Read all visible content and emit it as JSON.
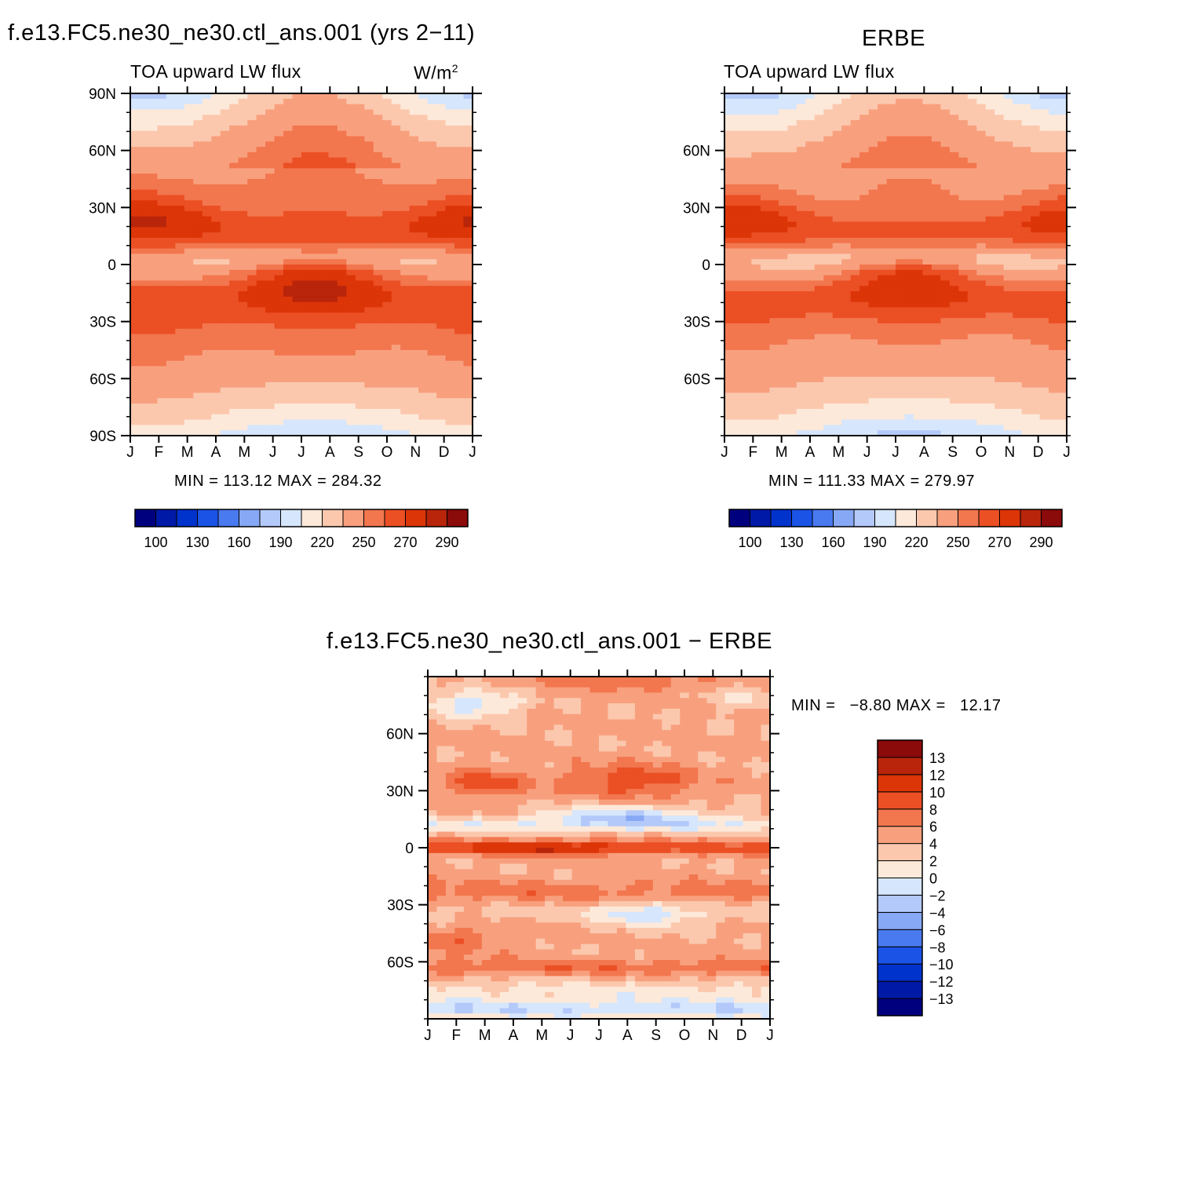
{
  "panel_model": {
    "title": "f.e13.FC5.ne30_ne30.ctl_ans.001 (yrs 2−11)",
    "subtitle_left": "TOA upward LW flux",
    "units_base": "W/m",
    "units_exp": "2",
    "stats": "MIN = 113.12 MAX = 284.32"
  },
  "panel_obs": {
    "title": "ERBE",
    "subtitle_left": "TOA upward LW flux",
    "stats": "MIN = 111.33 MAX = 279.97"
  },
  "panel_diff": {
    "title": "f.e13.FC5.ne30_ne30.ctl_ans.001 − ERBE",
    "stats": "MIN =   −8.80 MAX =   12.17"
  },
  "colors": {
    "flux": [
      "#00007f",
      "#0019a6",
      "#0032cc",
      "#1a53e6",
      "#4a7af0",
      "#87a8f5",
      "#b3c9fa",
      "#d6e6fc",
      "#fde9d9",
      "#fbc8ae",
      "#f8a07e",
      "#f2764e",
      "#eb4f24",
      "#dc3508",
      "#b8250a",
      "#8b0a0a"
    ],
    "diff": [
      "#00007f",
      "#0019a6",
      "#0032cc",
      "#1a53e6",
      "#4a7af0",
      "#87a8f5",
      "#b3c9fa",
      "#d6e6fc",
      "#fde9d9",
      "#fbc8ae",
      "#f8a07e",
      "#f2764e",
      "#eb4f24",
      "#dc3508",
      "#b8250a",
      "#8b0a0a"
    ]
  },
  "chart_data": [
    {
      "type": "heatmap",
      "name": "model",
      "x_tick_labels": [
        "J",
        "F",
        "M",
        "A",
        "M",
        "J",
        "J",
        "A",
        "S",
        "O",
        "N",
        "D",
        "J"
      ],
      "y_tick_labels": [
        "90N",
        "60N",
        "30N",
        "0",
        "30S",
        "60S",
        "90S"
      ],
      "y_tick_values": [
        90,
        60,
        30,
        0,
        -30,
        -60,
        -90
      ],
      "ylim": [
        -90,
        90
      ],
      "colorbar_labels": [
        "100",
        "130",
        "160",
        "190",
        "220",
        "250",
        "270",
        "290"
      ],
      "min": 113.12,
      "max": 284.32
    },
    {
      "type": "heatmap",
      "name": "ERBE",
      "x_tick_labels": [
        "J",
        "F",
        "M",
        "A",
        "M",
        "J",
        "J",
        "A",
        "S",
        "O",
        "N",
        "D",
        "J"
      ],
      "y_tick_labels": [
        "60N",
        "30N",
        "0",
        "30S",
        "60S"
      ],
      "y_tick_values": [
        60,
        30,
        0,
        -30,
        -60
      ],
      "ylim": [
        -90,
        90
      ],
      "colorbar_labels": [
        "100",
        "130",
        "160",
        "190",
        "220",
        "250",
        "270",
        "290"
      ],
      "min": 111.33,
      "max": 279.97
    },
    {
      "type": "heatmap",
      "name": "difference",
      "x_tick_labels": [
        "J",
        "F",
        "M",
        "A",
        "M",
        "J",
        "J",
        "A",
        "S",
        "O",
        "N",
        "D",
        "J"
      ],
      "y_tick_labels": [
        "60N",
        "30N",
        "0",
        "30S",
        "60S"
      ],
      "y_tick_values": [
        60,
        30,
        0,
        -30,
        -60
      ],
      "ylim": [
        -90,
        90
      ],
      "colorbar_labels": [
        "13",
        "12",
        "10",
        "8",
        "6",
        "4",
        "2",
        "0",
        "−2",
        "−4",
        "−6",
        "−8",
        "−10",
        "−12",
        "−13"
      ],
      "min": -8.8,
      "max": 12.17
    }
  ]
}
